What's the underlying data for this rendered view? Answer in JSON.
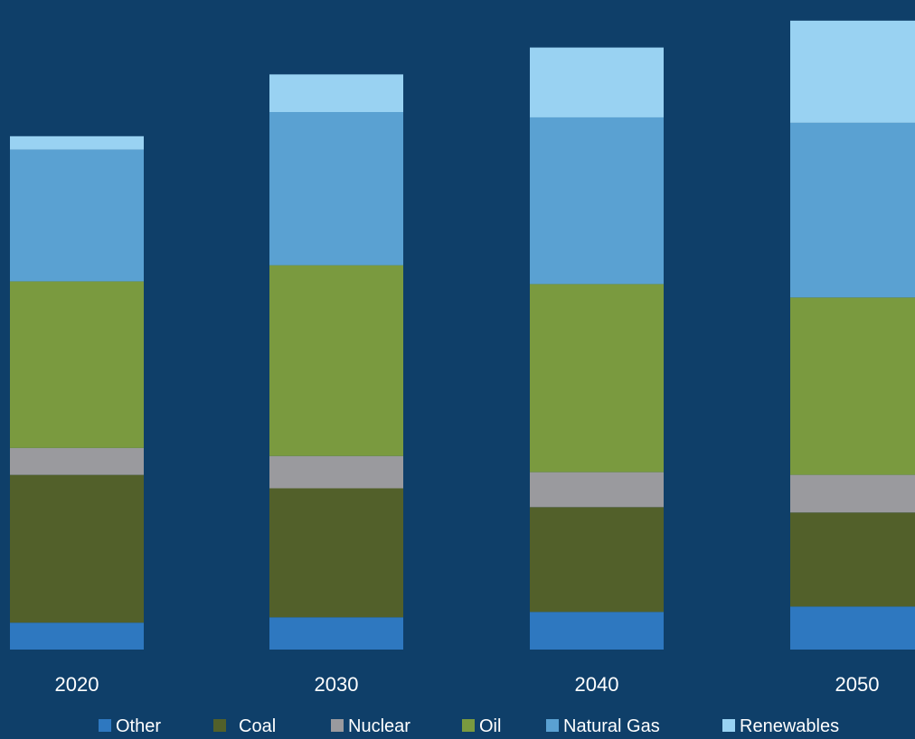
{
  "colors": {
    "background": "#0f3f69"
  },
  "chart_data": {
    "type": "bar",
    "stacked": true,
    "title": "",
    "xlabel": "",
    "ylabel": "",
    "categories": [
      "2020",
      "2030",
      "2040",
      "2050"
    ],
    "ylim": [
      0,
      240
    ],
    "grid": false,
    "legend_position": "bottom",
    "series": [
      {
        "name": "Other",
        "color": "#2e78c0",
        "values": [
          10,
          12,
          14,
          16
        ]
      },
      {
        "name": "Coal",
        "color": "#52602a",
        "values": [
          55,
          48,
          39,
          35
        ]
      },
      {
        "name": "Nuclear",
        "color": "#9a9a9e",
        "values": [
          10,
          12,
          13,
          14
        ]
      },
      {
        "name": "Oil",
        "color": "#7a9a3f",
        "values": [
          62,
          71,
          70,
          66
        ]
      },
      {
        "name": "Natural Gas",
        "color": "#5aa1d2",
        "values": [
          49,
          57,
          62,
          65
        ]
      },
      {
        "name": "Renewables",
        "color": "#99d2f2",
        "values": [
          5,
          14,
          26,
          38
        ]
      }
    ]
  }
}
